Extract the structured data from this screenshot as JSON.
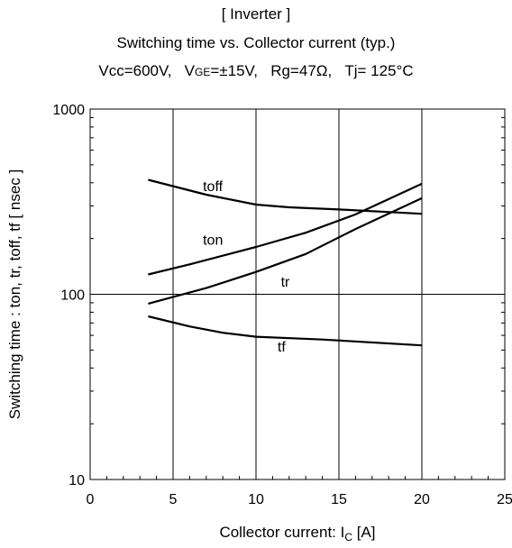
{
  "chart_data": {
    "type": "line",
    "title": "[ Inverter ]",
    "subtitle": "Switching time  vs.  Collector current  (typ.)",
    "conditions": {
      "vcc": "Vcc=600V,",
      "vge_main": "V",
      "vge_sub": "GE",
      "vge_val": "=±15V,",
      "rg": "Rg=47Ω,",
      "tj": "Tj= 125°C"
    },
    "xlabel": {
      "text": "Collector current: I",
      "sub": "C",
      "suffix": " [A]"
    },
    "ylabel": "Switching time  :  ton, tr, toff, tf  [ nsec ]",
    "xlim": [
      0,
      25
    ],
    "ylim": [
      10,
      1000
    ],
    "yscale": "log",
    "grid": true,
    "xticks": [
      0,
      5,
      10,
      15,
      20,
      25
    ],
    "yticks": [
      10,
      100,
      1000
    ],
    "series": [
      {
        "name": "toff",
        "label_at": [
          6.8,
          360
        ],
        "points": [
          [
            3.5,
            415
          ],
          [
            7,
            345
          ],
          [
            10,
            305
          ],
          [
            12,
            295
          ],
          [
            15,
            287
          ],
          [
            20,
            272
          ]
        ]
      },
      {
        "name": "ton",
        "label_at": [
          6.8,
          185
        ],
        "points": [
          [
            3.5,
            128
          ],
          [
            6,
            145
          ],
          [
            10,
            180
          ],
          [
            13,
            215
          ],
          [
            16,
            270
          ],
          [
            20,
            395
          ]
        ]
      },
      {
        "name": "tr",
        "label_at": [
          11.5,
          110
        ],
        "points": [
          [
            3.5,
            89
          ],
          [
            7,
            108
          ],
          [
            10,
            132
          ],
          [
            13,
            165
          ],
          [
            16,
            225
          ],
          [
            20,
            330
          ]
        ]
      },
      {
        "name": "tf",
        "label_at": [
          11.3,
          49
        ],
        "points": [
          [
            3.5,
            76
          ],
          [
            6,
            67
          ],
          [
            8,
            62
          ],
          [
            10,
            59
          ],
          [
            14,
            57
          ],
          [
            20,
            53
          ]
        ]
      }
    ]
  }
}
